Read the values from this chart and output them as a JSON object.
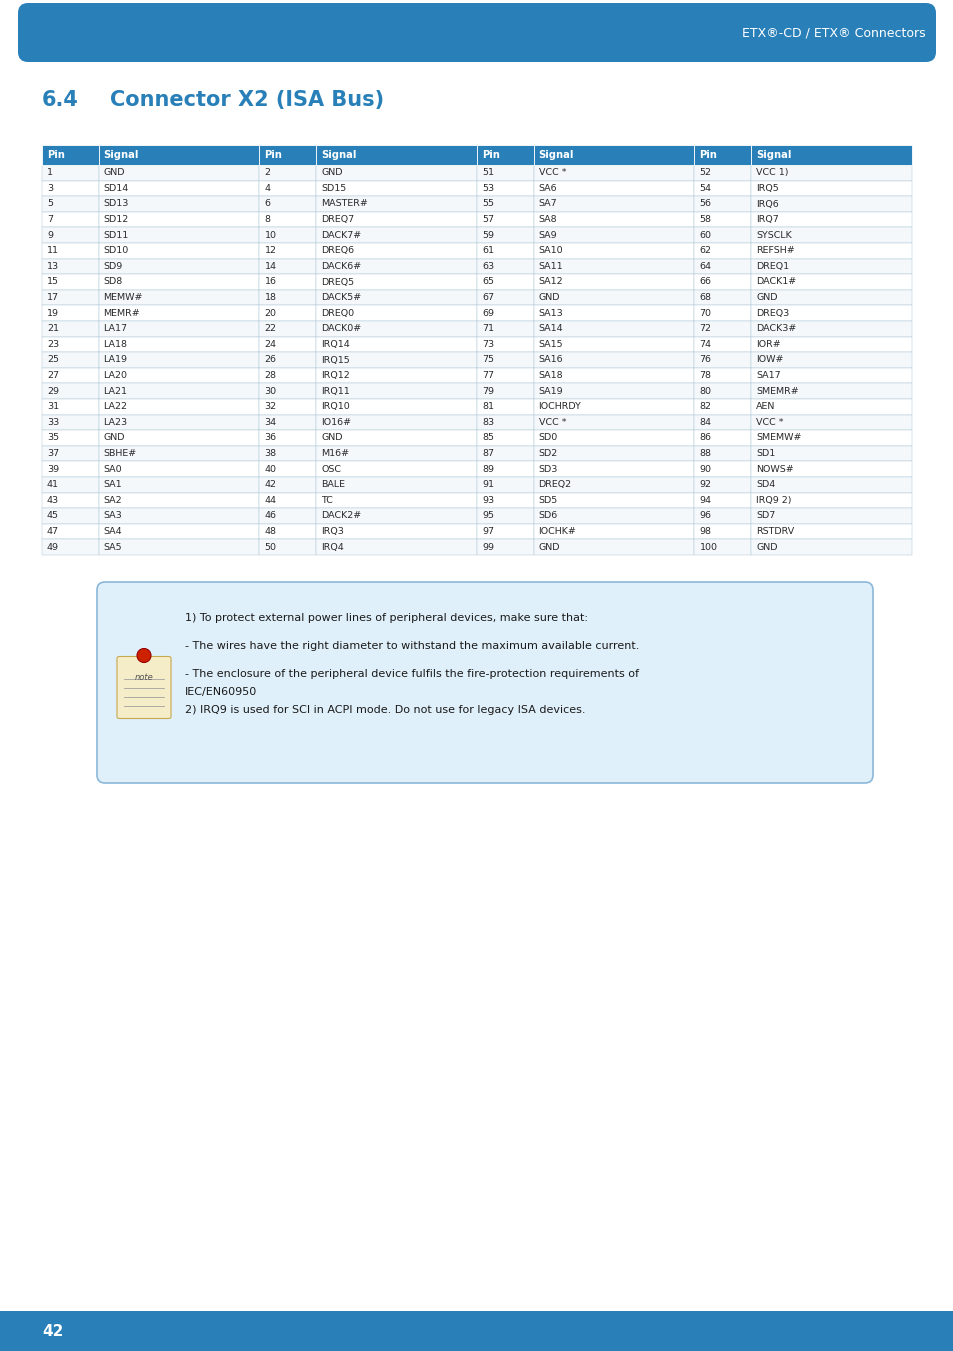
{
  "page_title": "ETX®-CD / ETX® Connectors",
  "section_number": "6.4",
  "section_title": "Connector X2 (ISA Bus)",
  "header_bg": "#2980B9",
  "header_text_color": "#FFFFFF",
  "table_header": [
    "Pin",
    "Signal",
    "Pin",
    "Signal",
    "Pin",
    "Signal",
    "Pin",
    "Signal"
  ],
  "rows": [
    [
      "1",
      "GND",
      "2",
      "GND",
      "51",
      "VCC *",
      "52",
      "VCC 1)"
    ],
    [
      "3",
      "SD14",
      "4",
      "SD15",
      "53",
      "SA6",
      "54",
      "IRQ5"
    ],
    [
      "5",
      "SD13",
      "6",
      "MASTER#",
      "55",
      "SA7",
      "56",
      "IRQ6"
    ],
    [
      "7",
      "SD12",
      "8",
      "DREQ7",
      "57",
      "SA8",
      "58",
      "IRQ7"
    ],
    [
      "9",
      "SD11",
      "10",
      "DACK7#",
      "59",
      "SA9",
      "60",
      "SYSCLK"
    ],
    [
      "11",
      "SD10",
      "12",
      "DREQ6",
      "61",
      "SA10",
      "62",
      "REFSH#"
    ],
    [
      "13",
      "SD9",
      "14",
      "DACK6#",
      "63",
      "SA11",
      "64",
      "DREQ1"
    ],
    [
      "15",
      "SD8",
      "16",
      "DREQ5",
      "65",
      "SA12",
      "66",
      "DACK1#"
    ],
    [
      "17",
      "MEMW#",
      "18",
      "DACK5#",
      "67",
      "GND",
      "68",
      "GND"
    ],
    [
      "19",
      "MEMR#",
      "20",
      "DREQ0",
      "69",
      "SA13",
      "70",
      "DREQ3"
    ],
    [
      "21",
      "LA17",
      "22",
      "DACK0#",
      "71",
      "SA14",
      "72",
      "DACK3#"
    ],
    [
      "23",
      "LA18",
      "24",
      "IRQ14",
      "73",
      "SA15",
      "74",
      "IOR#"
    ],
    [
      "25",
      "LA19",
      "26",
      "IRQ15",
      "75",
      "SA16",
      "76",
      "IOW#"
    ],
    [
      "27",
      "LA20",
      "28",
      "IRQ12",
      "77",
      "SA18",
      "78",
      "SA17"
    ],
    [
      "29",
      "LA21",
      "30",
      "IRQ11",
      "79",
      "SA19",
      "80",
      "SMEMR#"
    ],
    [
      "31",
      "LA22",
      "32",
      "IRQ10",
      "81",
      "IOCHRDY",
      "82",
      "AEN"
    ],
    [
      "33",
      "LA23",
      "34",
      "IO16#",
      "83",
      "VCC *",
      "84",
      "VCC *"
    ],
    [
      "35",
      "GND",
      "36",
      "GND",
      "85",
      "SD0",
      "86",
      "SMEMW#"
    ],
    [
      "37",
      "SBHE#",
      "38",
      "M16#",
      "87",
      "SD2",
      "88",
      "SD1"
    ],
    [
      "39",
      "SA0",
      "40",
      "OSC",
      "89",
      "SD3",
      "90",
      "NOWS#"
    ],
    [
      "41",
      "SA1",
      "42",
      "BALE",
      "91",
      "DREQ2",
      "92",
      "SD4"
    ],
    [
      "43",
      "SA2",
      "44",
      "TC",
      "93",
      "SD5",
      "94",
      "IRQ9 2)"
    ],
    [
      "45",
      "SA3",
      "46",
      "DACK2#",
      "95",
      "SD6",
      "96",
      "SD7"
    ],
    [
      "47",
      "SA4",
      "48",
      "IRQ3",
      "97",
      "IOCHK#",
      "98",
      "RSTDRV"
    ],
    [
      "49",
      "SA5",
      "50",
      "IRQ4",
      "99",
      "GND",
      "100",
      "GND"
    ]
  ],
  "note_line1": "1) To protect external power lines of peripheral devices, make sure that:",
  "note_line2": "- The wires have the right diameter to withstand the maximum available current.",
  "note_line3": "- The enclosure of the peripheral device fulfils the fire-protection requirements of",
  "note_line4": "IEC/EN60950",
  "note_line5": "2) IRQ9 is used for SCI in ACPI mode. Do not use for legacy ISA devices.",
  "note_bg": "#E0F0FA",
  "note_border": "#8BB8D8",
  "top_bar_color": "#2980B9",
  "page_number": "42",
  "page_footer_bg": "#2980B9",
  "title_color": "#2980B9",
  "border_color": "#B0C8D8",
  "row_bg_odd": "#F4F8FB",
  "row_bg_even": "#FFFFFF"
}
